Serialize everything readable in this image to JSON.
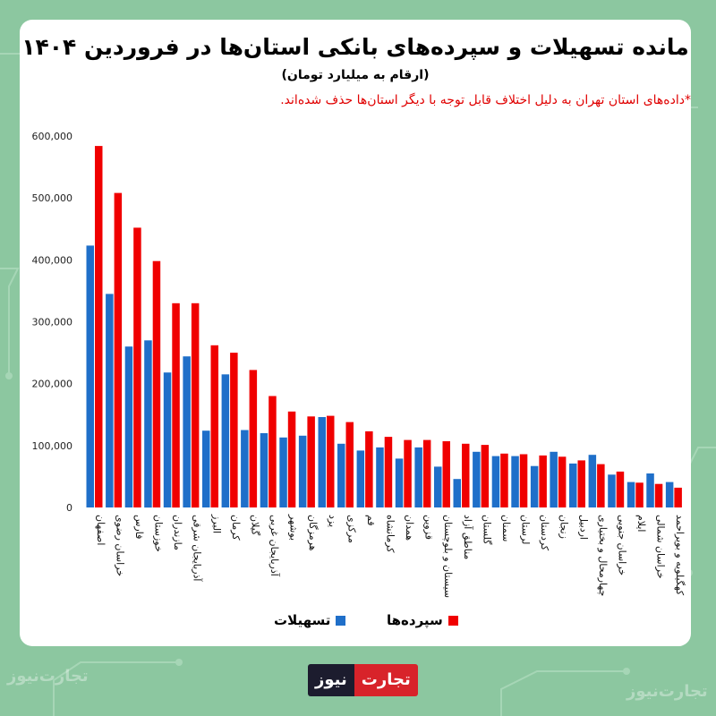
{
  "colors": {
    "facilities": "#1f6fc9",
    "deposits": "#f00000",
    "background": "#8cc7a0",
    "note": "#e00000"
  },
  "header": {
    "title": "مانده تسهیلات و سپرده‌های بانکی استان‌ها در فروردین ۱۴۰۴",
    "subtitle": "(ارقام به میلیارد تومان)",
    "note": "*داده‌های استان تهران به دلیل اختلاف قابل توجه با دیگر استان‌ها حذف شده‌اند."
  },
  "brand": {
    "part1": "تجارت",
    "part2": "نیوز",
    "watermark": "تجارت‌نیوز"
  },
  "chart_data": {
    "type": "bar",
    "title": "مانده تسهیلات و سپرده‌های بانکی استان‌ها در فروردین ۱۴۰۴",
    "ylim": [
      0,
      600000
    ],
    "yticks": [
      0,
      100000,
      200000,
      300000,
      400000,
      500000,
      600000
    ],
    "ytick_labels": [
      "0",
      "100,000",
      "200,000",
      "300,000",
      "400,000",
      "500,000",
      "600,000"
    ],
    "categories": [
      "اصفهان",
      "خراسان رضوی",
      "فارس",
      "خوزستان",
      "مازندران",
      "آذربایجان شرقی",
      "البرز",
      "کرمان",
      "گیلان",
      "آذربایجان غربی",
      "بوشهر",
      "هرمزگان",
      "یزد",
      "مرکزی",
      "قم",
      "کرمانشاه",
      "همدان",
      "قزوین",
      "سیستان و بلوچستان",
      "مناطق آزاد",
      "گلستان",
      "سمنان",
      "لرستان",
      "کردستان",
      "زنجان",
      "اردبیل",
      "چهارمحال و بختیاری",
      "خراسان جنوبی",
      "ایلام",
      "خراسان شمالی",
      "کهگیلویه و بویراحمد"
    ],
    "series": [
      {
        "name": "تسهیلات",
        "values": [
          423000,
          345000,
          260000,
          270000,
          218000,
          244000,
          124000,
          215000,
          125000,
          120000,
          113000,
          116000,
          146000,
          103000,
          92000,
          97000,
          79000,
          97000,
          66000,
          46000,
          90000,
          83000,
          83000,
          67000,
          90000,
          71000,
          85000,
          53000,
          41000,
          55000,
          41000
        ]
      },
      {
        "name": "سپرده‌ها",
        "values": [
          584000,
          508000,
          452000,
          398000,
          330000,
          330000,
          262000,
          250000,
          222000,
          180000,
          155000,
          147000,
          148000,
          138000,
          123000,
          114000,
          109000,
          109000,
          107000,
          103000,
          101000,
          87000,
          86000,
          84000,
          82000,
          76000,
          70000,
          58000,
          40000,
          38000,
          32000
        ]
      }
    ],
    "legend": {
      "position": "bottom"
    }
  }
}
